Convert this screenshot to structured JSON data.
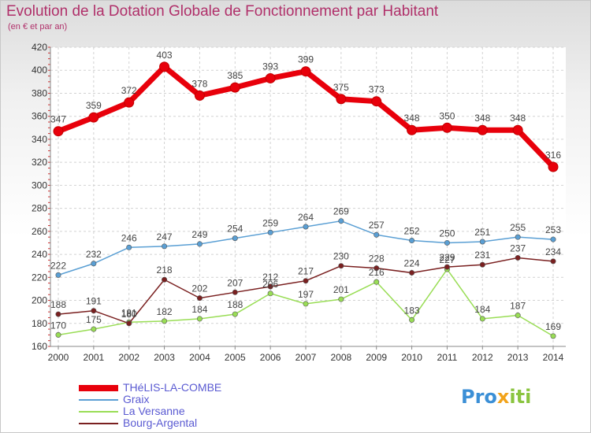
{
  "title": "Evolution de la Dotation Globale de Fonctionnement par Habitant",
  "subtitle": "(en € et par an)",
  "logo": {
    "part1": "Pro",
    "part2": "x",
    "part3": "iti"
  },
  "chart_data": {
    "type": "line",
    "x": [
      "2000",
      "2001",
      "2002",
      "2003",
      "2004",
      "2005",
      "2006",
      "2007",
      "2008",
      "2009",
      "2010",
      "2011",
      "2012",
      "2013",
      "2014"
    ],
    "ylim": [
      160,
      420
    ],
    "yticks": [
      160,
      180,
      200,
      220,
      240,
      260,
      280,
      300,
      320,
      340,
      360,
      380,
      400,
      420
    ],
    "grid": true,
    "legend_position": "bottom-left",
    "series": [
      {
        "name": "THéLIS-LA-COMBE",
        "color": "#e8000b",
        "values": [
          347,
          359,
          372,
          403,
          378,
          385,
          393,
          399,
          375,
          373,
          348,
          350,
          348,
          348,
          316
        ]
      },
      {
        "name": "Graix",
        "color": "#5a9fd4",
        "values": [
          222,
          232,
          246,
          247,
          249,
          254,
          259,
          264,
          269,
          257,
          252,
          250,
          251,
          255,
          253
        ]
      },
      {
        "name": "La Versanne",
        "color": "#99dd55",
        "values": [
          170,
          175,
          181,
          182,
          184,
          188,
          206,
          197,
          201,
          216,
          183,
          227,
          184,
          187,
          169
        ]
      },
      {
        "name": "Bourg-Argental",
        "color": "#7a2020",
        "values": [
          188,
          191,
          180,
          218,
          202,
          207,
          212,
          217,
          230,
          228,
          224,
          229,
          231,
          237,
          234
        ]
      }
    ]
  }
}
